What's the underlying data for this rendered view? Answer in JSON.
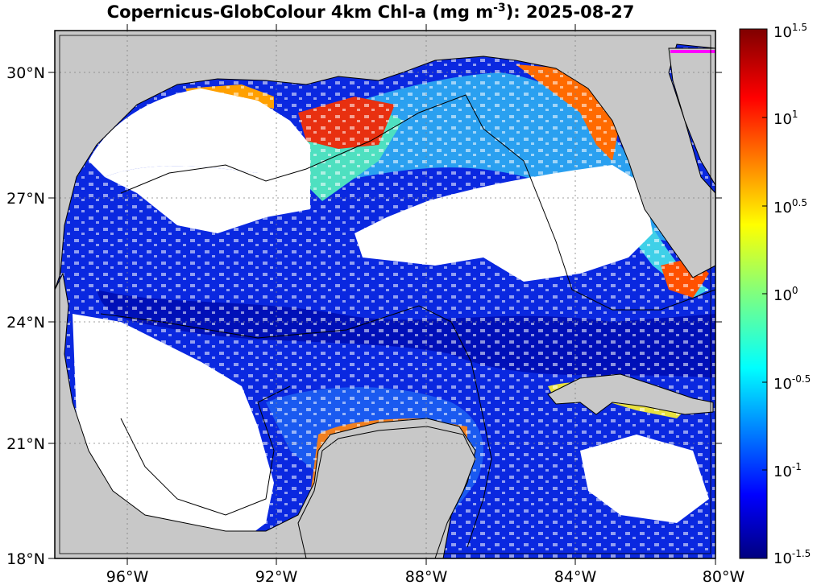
{
  "title": {
    "prefix": "Copernicus-GlobColour 4km Chl-a (mg m",
    "sup": "-3",
    "suffix": "): 2025-08-27"
  },
  "map": {
    "lat_labels": [
      "30°N",
      "27°N",
      "24°N",
      "21°N",
      "18°N"
    ],
    "lon_labels": [
      "96°W",
      "92°W",
      "88°W",
      "84°W",
      "80°W"
    ],
    "colors": {
      "land": "#c8c8c8",
      "no_data": "#ffffff",
      "coastline": "#000000",
      "marker": "#ff00ff"
    }
  },
  "colorbar": {
    "scale": "log10",
    "range": [
      -1.5,
      1.5
    ],
    "labels": [
      {
        "base": "10",
        "exp": "1.5"
      },
      {
        "base": "10",
        "exp": "1"
      },
      {
        "base": "10",
        "exp": "0.5"
      },
      {
        "base": "10",
        "exp": "0"
      },
      {
        "base": "10",
        "exp": "-0.5"
      },
      {
        "base": "10",
        "exp": "-1"
      },
      {
        "base": "10",
        "exp": "-1.5"
      }
    ],
    "colormap": "jet"
  }
}
